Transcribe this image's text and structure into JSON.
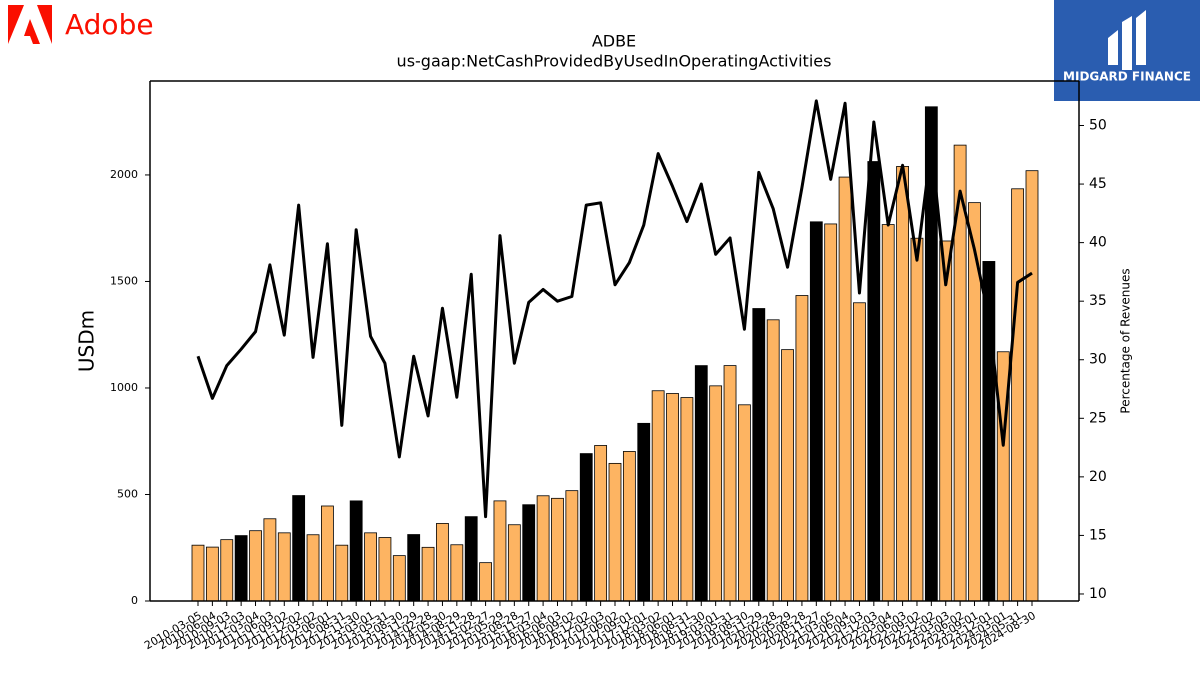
{
  "branding": {
    "left": "Adobe",
    "right": "MIDGARD FINANCE"
  },
  "chart_data": {
    "type": "bar-line",
    "title": "ADBE",
    "subtitle": "us-gaap:NetCashProvidedByUsedInOperatingActivities",
    "ylabel": "USDm",
    "y2label": "Percentage of Revenues",
    "categories": [
      "2010-03-05",
      "2010-06-04",
      "2010-09-03",
      "2010-12-03",
      "2011-03-04",
      "2011-06-03",
      "2011-09-02",
      "2011-12-02",
      "2012-03-02",
      "2012-06-01",
      "2012-08-31",
      "2012-11-30",
      "2013-03-01",
      "2013-05-31",
      "2013-08-30",
      "2013-11-29",
      "2014-02-28",
      "2014-05-30",
      "2014-08-29",
      "2014-11-28",
      "2015-02-27",
      "2015-05-29",
      "2015-08-28",
      "2015-11-27",
      "2016-03-04",
      "2016-06-03",
      "2016-09-02",
      "2016-12-02",
      "2017-03-03",
      "2017-06-02",
      "2017-09-01",
      "2017-12-01",
      "2018-03-02",
      "2018-06-01",
      "2018-08-31",
      "2018-11-30",
      "2019-03-01",
      "2019-05-31",
      "2019-08-30",
      "2019-11-29",
      "2020-02-28",
      "2020-05-29",
      "2020-08-28",
      "2020-11-27",
      "2021-03-05",
      "2021-06-04",
      "2021-09-03",
      "2021-12-03",
      "2022-03-04",
      "2022-06-03",
      "2022-09-02",
      "2022-12-02",
      "2023-03-03",
      "2023-06-02",
      "2023-09-01",
      "2023-12-01",
      "2024-03-01",
      "2024-05-31",
      "2024-08-30"
    ],
    "bars": {
      "values": [
        262,
        253,
        288,
        307,
        330,
        386,
        320,
        495,
        311,
        446,
        262,
        470,
        320,
        298,
        213,
        312,
        252,
        364,
        264,
        396,
        180,
        470,
        358,
        452,
        494,
        482,
        518,
        692,
        730,
        646,
        702,
        834,
        987,
        974,
        955,
        1105,
        1010,
        1105,
        921,
        1373,
        1320,
        1180,
        1434,
        1780,
        1770,
        1990,
        1400,
        2063,
        1767,
        2040,
        1703,
        2320,
        1690,
        2140,
        1870,
        1594,
        1170,
        1935,
        2020
      ],
      "colors": [
        "#fdb462",
        "#fdb462",
        "#fdb462",
        "#000000",
        "#fdb462",
        "#fdb462",
        "#fdb462",
        "#000000",
        "#fdb462",
        "#fdb462",
        "#fdb462",
        "#000000",
        "#fdb462",
        "#fdb462",
        "#fdb462",
        "#000000",
        "#fdb462",
        "#fdb462",
        "#fdb462",
        "#000000",
        "#fdb462",
        "#fdb462",
        "#fdb462",
        "#000000",
        "#fdb462",
        "#fdb462",
        "#fdb462",
        "#000000",
        "#fdb462",
        "#fdb462",
        "#fdb462",
        "#000000",
        "#fdb462",
        "#fdb462",
        "#fdb462",
        "#000000",
        "#fdb462",
        "#fdb462",
        "#fdb462",
        "#000000",
        "#fdb462",
        "#fdb462",
        "#fdb462",
        "#000000",
        "#fdb462",
        "#fdb462",
        "#fdb462",
        "#000000",
        "#fdb462",
        "#fdb462",
        "#fdb462",
        "#000000",
        "#fdb462",
        "#fdb462",
        "#fdb462",
        "#000000",
        "#fdb462",
        "#fdb462",
        "#fdb462"
      ]
    },
    "line": {
      "axis": "y2",
      "color": "#000000",
      "values": [
        30.3,
        26.7,
        29.5,
        30.9,
        32.4,
        38.1,
        32.1,
        43.2,
        30.2,
        39.9,
        24.4,
        41.1,
        32.0,
        29.7,
        21.7,
        30.3,
        25.2,
        34.4,
        26.8,
        37.3,
        16.6,
        40.6,
        29.7,
        34.9,
        36.0,
        35.0,
        35.4,
        43.2,
        43.4,
        36.4,
        38.3,
        41.5,
        47.6,
        44.8,
        41.8,
        45.0,
        39.0,
        40.4,
        32.6,
        46.0,
        42.9,
        37.9,
        44.7,
        52.1,
        45.4,
        51.9,
        35.7,
        50.3,
        41.5,
        46.6,
        38.5,
        48.2,
        36.4,
        44.4,
        39.4,
        33.6,
        22.7,
        36.6,
        37.4
      ]
    },
    "ylim": [
      0,
      2441
    ],
    "yticks": [
      0,
      500,
      1000,
      1500,
      2000
    ],
    "y2lim": [
      9.4,
      53.8
    ],
    "y2ticks": [
      10,
      15,
      20,
      25,
      30,
      35,
      40,
      45,
      50
    ]
  }
}
